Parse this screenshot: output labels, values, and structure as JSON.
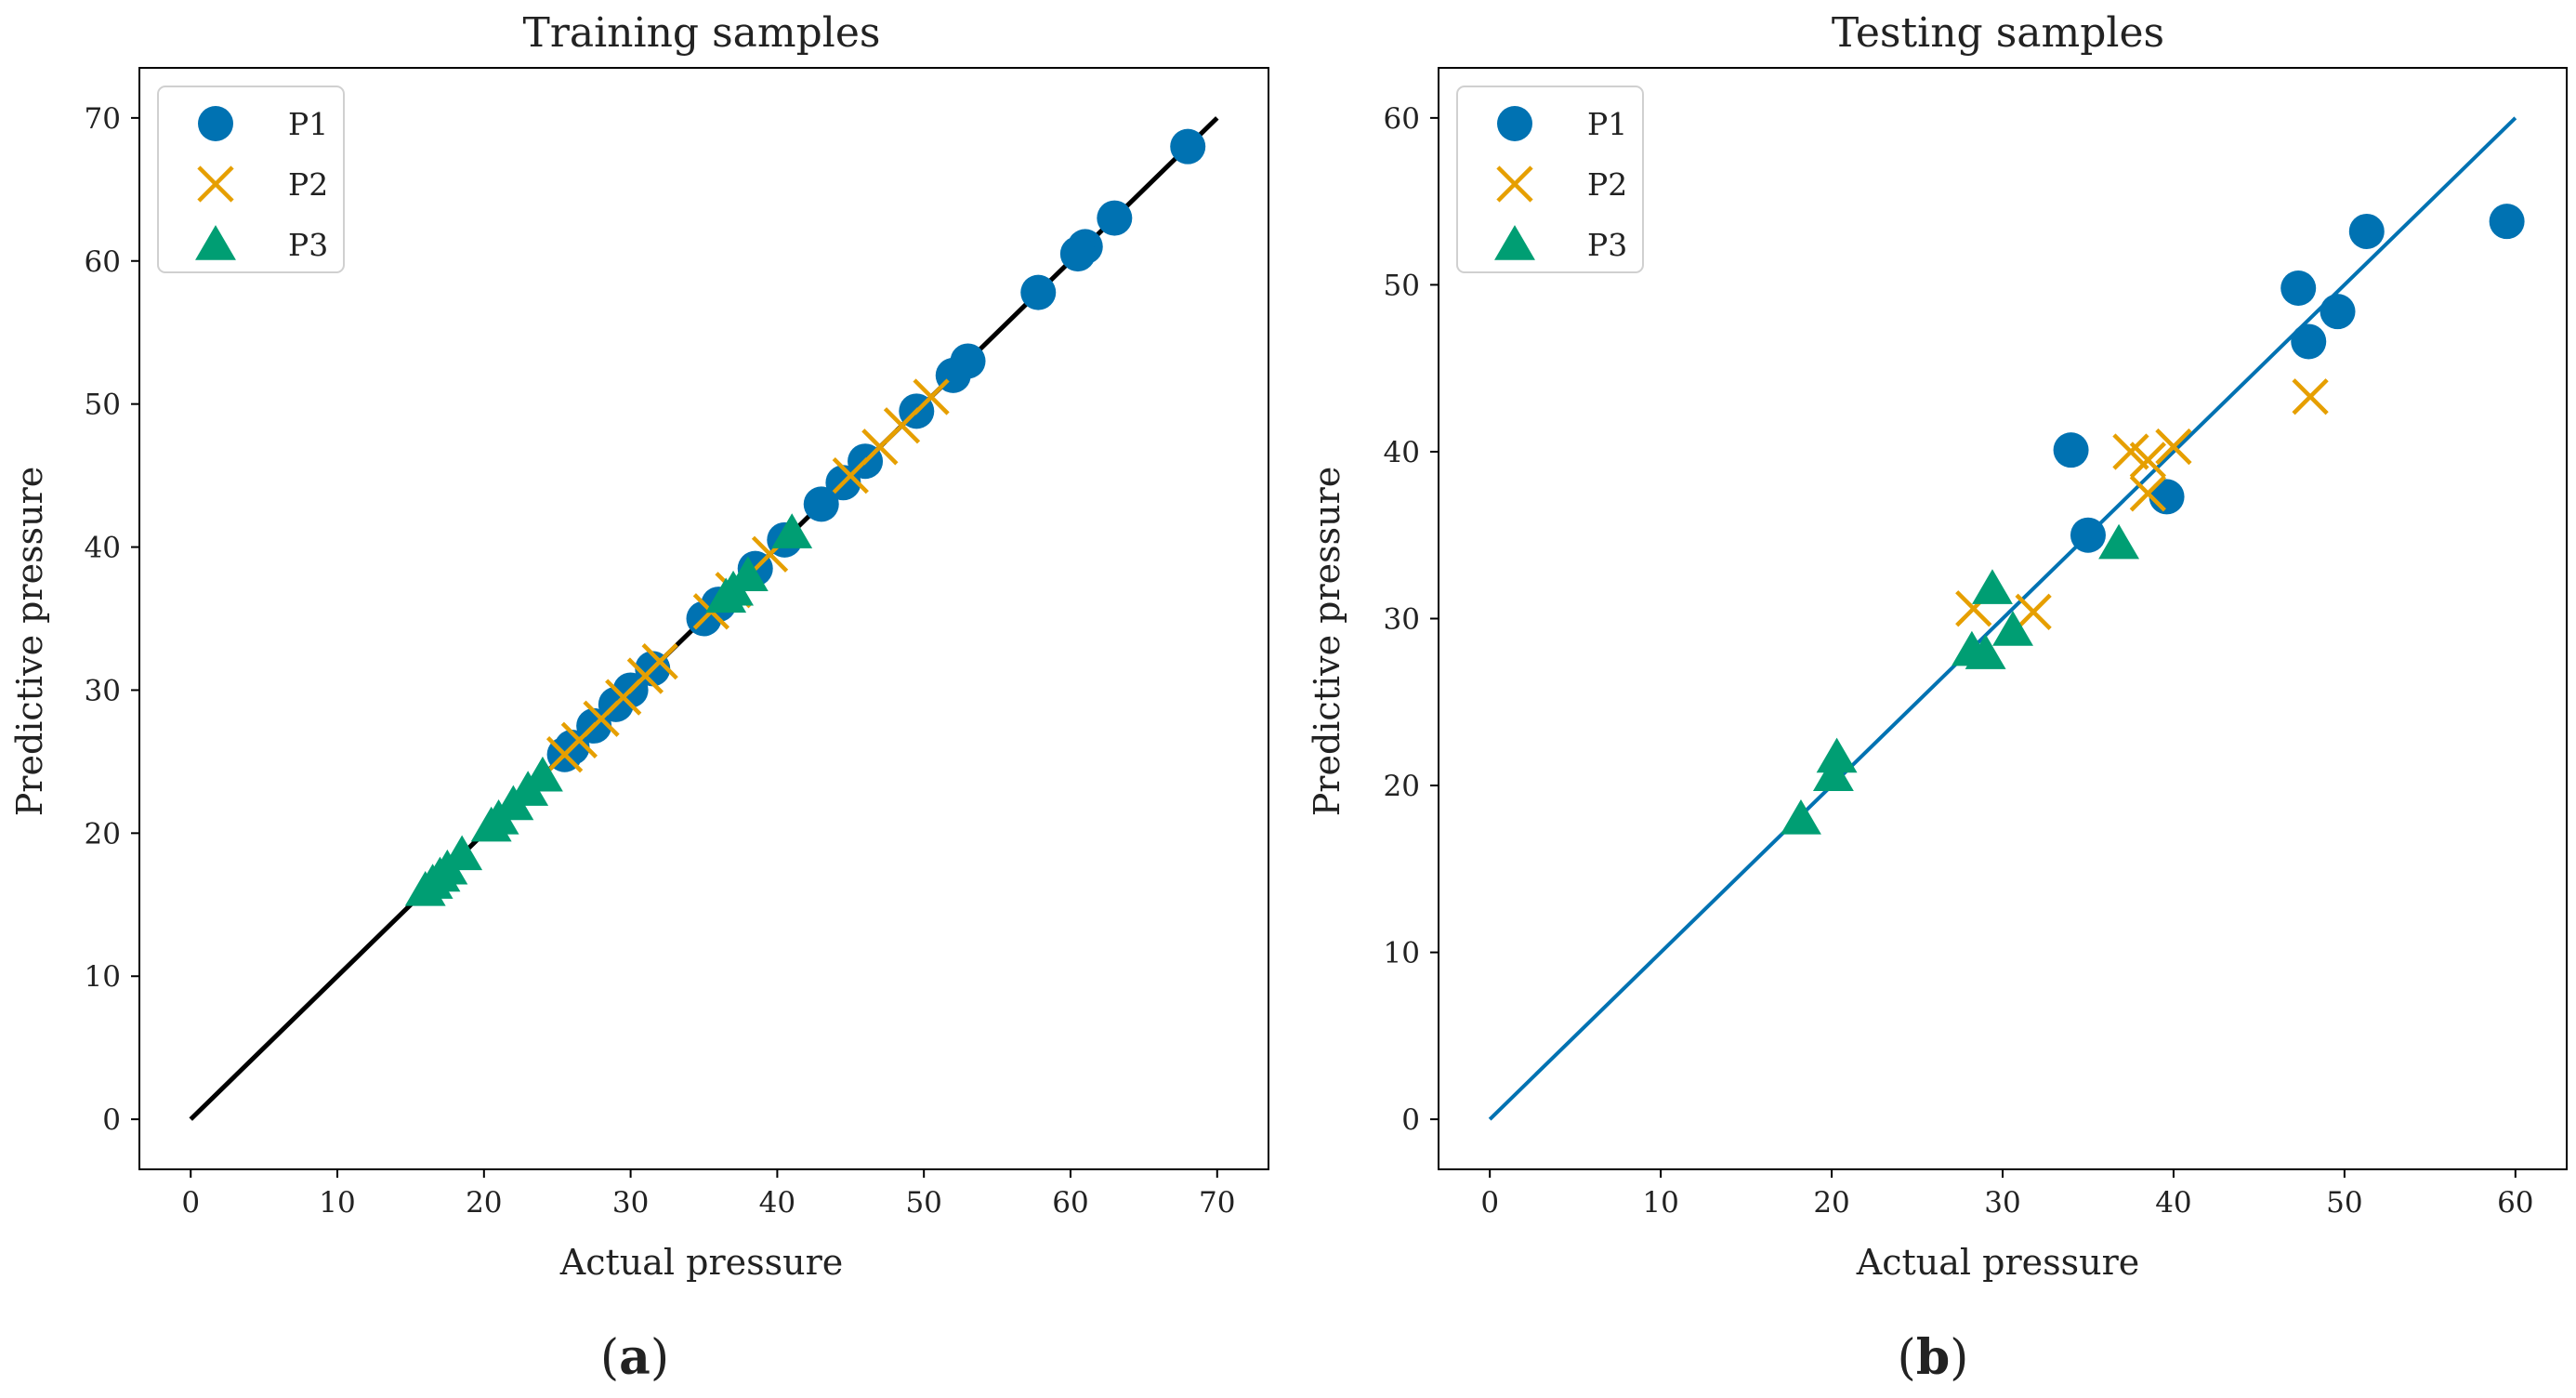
{
  "colors": {
    "p1": "#0072B2",
    "p2": "#E69F00",
    "p3": "#009E73",
    "line_a": "#000000",
    "line_b": "#0072B2",
    "axis": "#000000"
  },
  "chart_data": [
    {
      "type": "scatter",
      "title": "Training samples",
      "xlabel": "Actual pressure",
      "ylabel": "Predictive pressure",
      "xlim": [
        -3.5,
        73.5
      ],
      "ylim": [
        -3.5,
        73.5
      ],
      "xticks": [
        0,
        10,
        20,
        30,
        40,
        50,
        60,
        70
      ],
      "yticks": [
        0,
        10,
        20,
        30,
        40,
        50,
        60,
        70
      ],
      "reference_line": [
        [
          0,
          0
        ],
        [
          70,
          70
        ]
      ],
      "legend": {
        "position": "top-left",
        "entries": [
          "P1",
          "P2",
          "P3"
        ]
      },
      "caption_letter": "a",
      "series": [
        {
          "name": "P1",
          "marker": "circle",
          "x": [
            68,
            63,
            61,
            60.5,
            57.8,
            53,
            52,
            49.5,
            46,
            44.5,
            43,
            40.5,
            38.5,
            36,
            35,
            31.5,
            30,
            29,
            27.5,
            26,
            25.5
          ],
          "y": [
            68,
            63,
            61,
            60.5,
            57.8,
            53,
            52,
            49.5,
            46,
            44.5,
            43,
            40.5,
            38.5,
            36,
            35,
            31.5,
            30,
            29,
            27.5,
            26,
            25.5
          ]
        },
        {
          "name": "P2",
          "marker": "x",
          "x": [
            50.5,
            48.5,
            47,
            45,
            39.5,
            37,
            35.5,
            32,
            31,
            29.5,
            28,
            26.5,
            25.5
          ],
          "y": [
            50.5,
            48.5,
            47,
            45,
            39.5,
            37,
            35.5,
            32,
            31,
            29.5,
            28,
            26.5,
            25.5
          ]
        },
        {
          "name": "P3",
          "marker": "triangle",
          "x": [
            41,
            38,
            37,
            36.5,
            24,
            23,
            22,
            21,
            20.5,
            18.5,
            17.5,
            17,
            16.5,
            16
          ],
          "y": [
            41,
            38,
            37,
            36.5,
            24,
            23,
            22,
            21,
            20.5,
            18.5,
            17.5,
            17,
            16.5,
            16
          ]
        }
      ]
    },
    {
      "type": "scatter",
      "title": "Testing samples",
      "xlabel": "Actual pressure",
      "ylabel": "Predictive pressure",
      "xlim": [
        -3,
        63
      ],
      "ylim": [
        -3,
        63
      ],
      "xticks": [
        0,
        10,
        20,
        30,
        40,
        50,
        60
      ],
      "yticks": [
        0,
        10,
        20,
        30,
        40,
        50,
        60
      ],
      "reference_line": [
        [
          0,
          0
        ],
        [
          60,
          60
        ]
      ],
      "legend": {
        "position": "top-left",
        "entries": [
          "P1",
          "P2",
          "P3"
        ]
      },
      "caption_letter": "b",
      "series": [
        {
          "name": "P1",
          "marker": "circle",
          "x": [
            59.5,
            51.3,
            49.6,
            47.3,
            47.9,
            39.6,
            35,
            34
          ],
          "y": [
            53.8,
            53.2,
            48.4,
            49.8,
            46.6,
            37.3,
            35,
            40.1
          ]
        },
        {
          "name": "P2",
          "marker": "x",
          "x": [
            48,
            40,
            38.5,
            37.5,
            38.5,
            31.8,
            28.3
          ],
          "y": [
            43.3,
            40.3,
            37.5,
            40,
            39.5,
            30.4,
            30.6
          ]
        },
        {
          "name": "P3",
          "marker": "triangle",
          "x": [
            36.8,
            29.4,
            30.6,
            28.2,
            29,
            20.3,
            20.1,
            18.2
          ],
          "y": [
            34.5,
            31.8,
            29.3,
            28.1,
            27.9,
            21.7,
            20.6,
            18
          ]
        }
      ]
    }
  ]
}
